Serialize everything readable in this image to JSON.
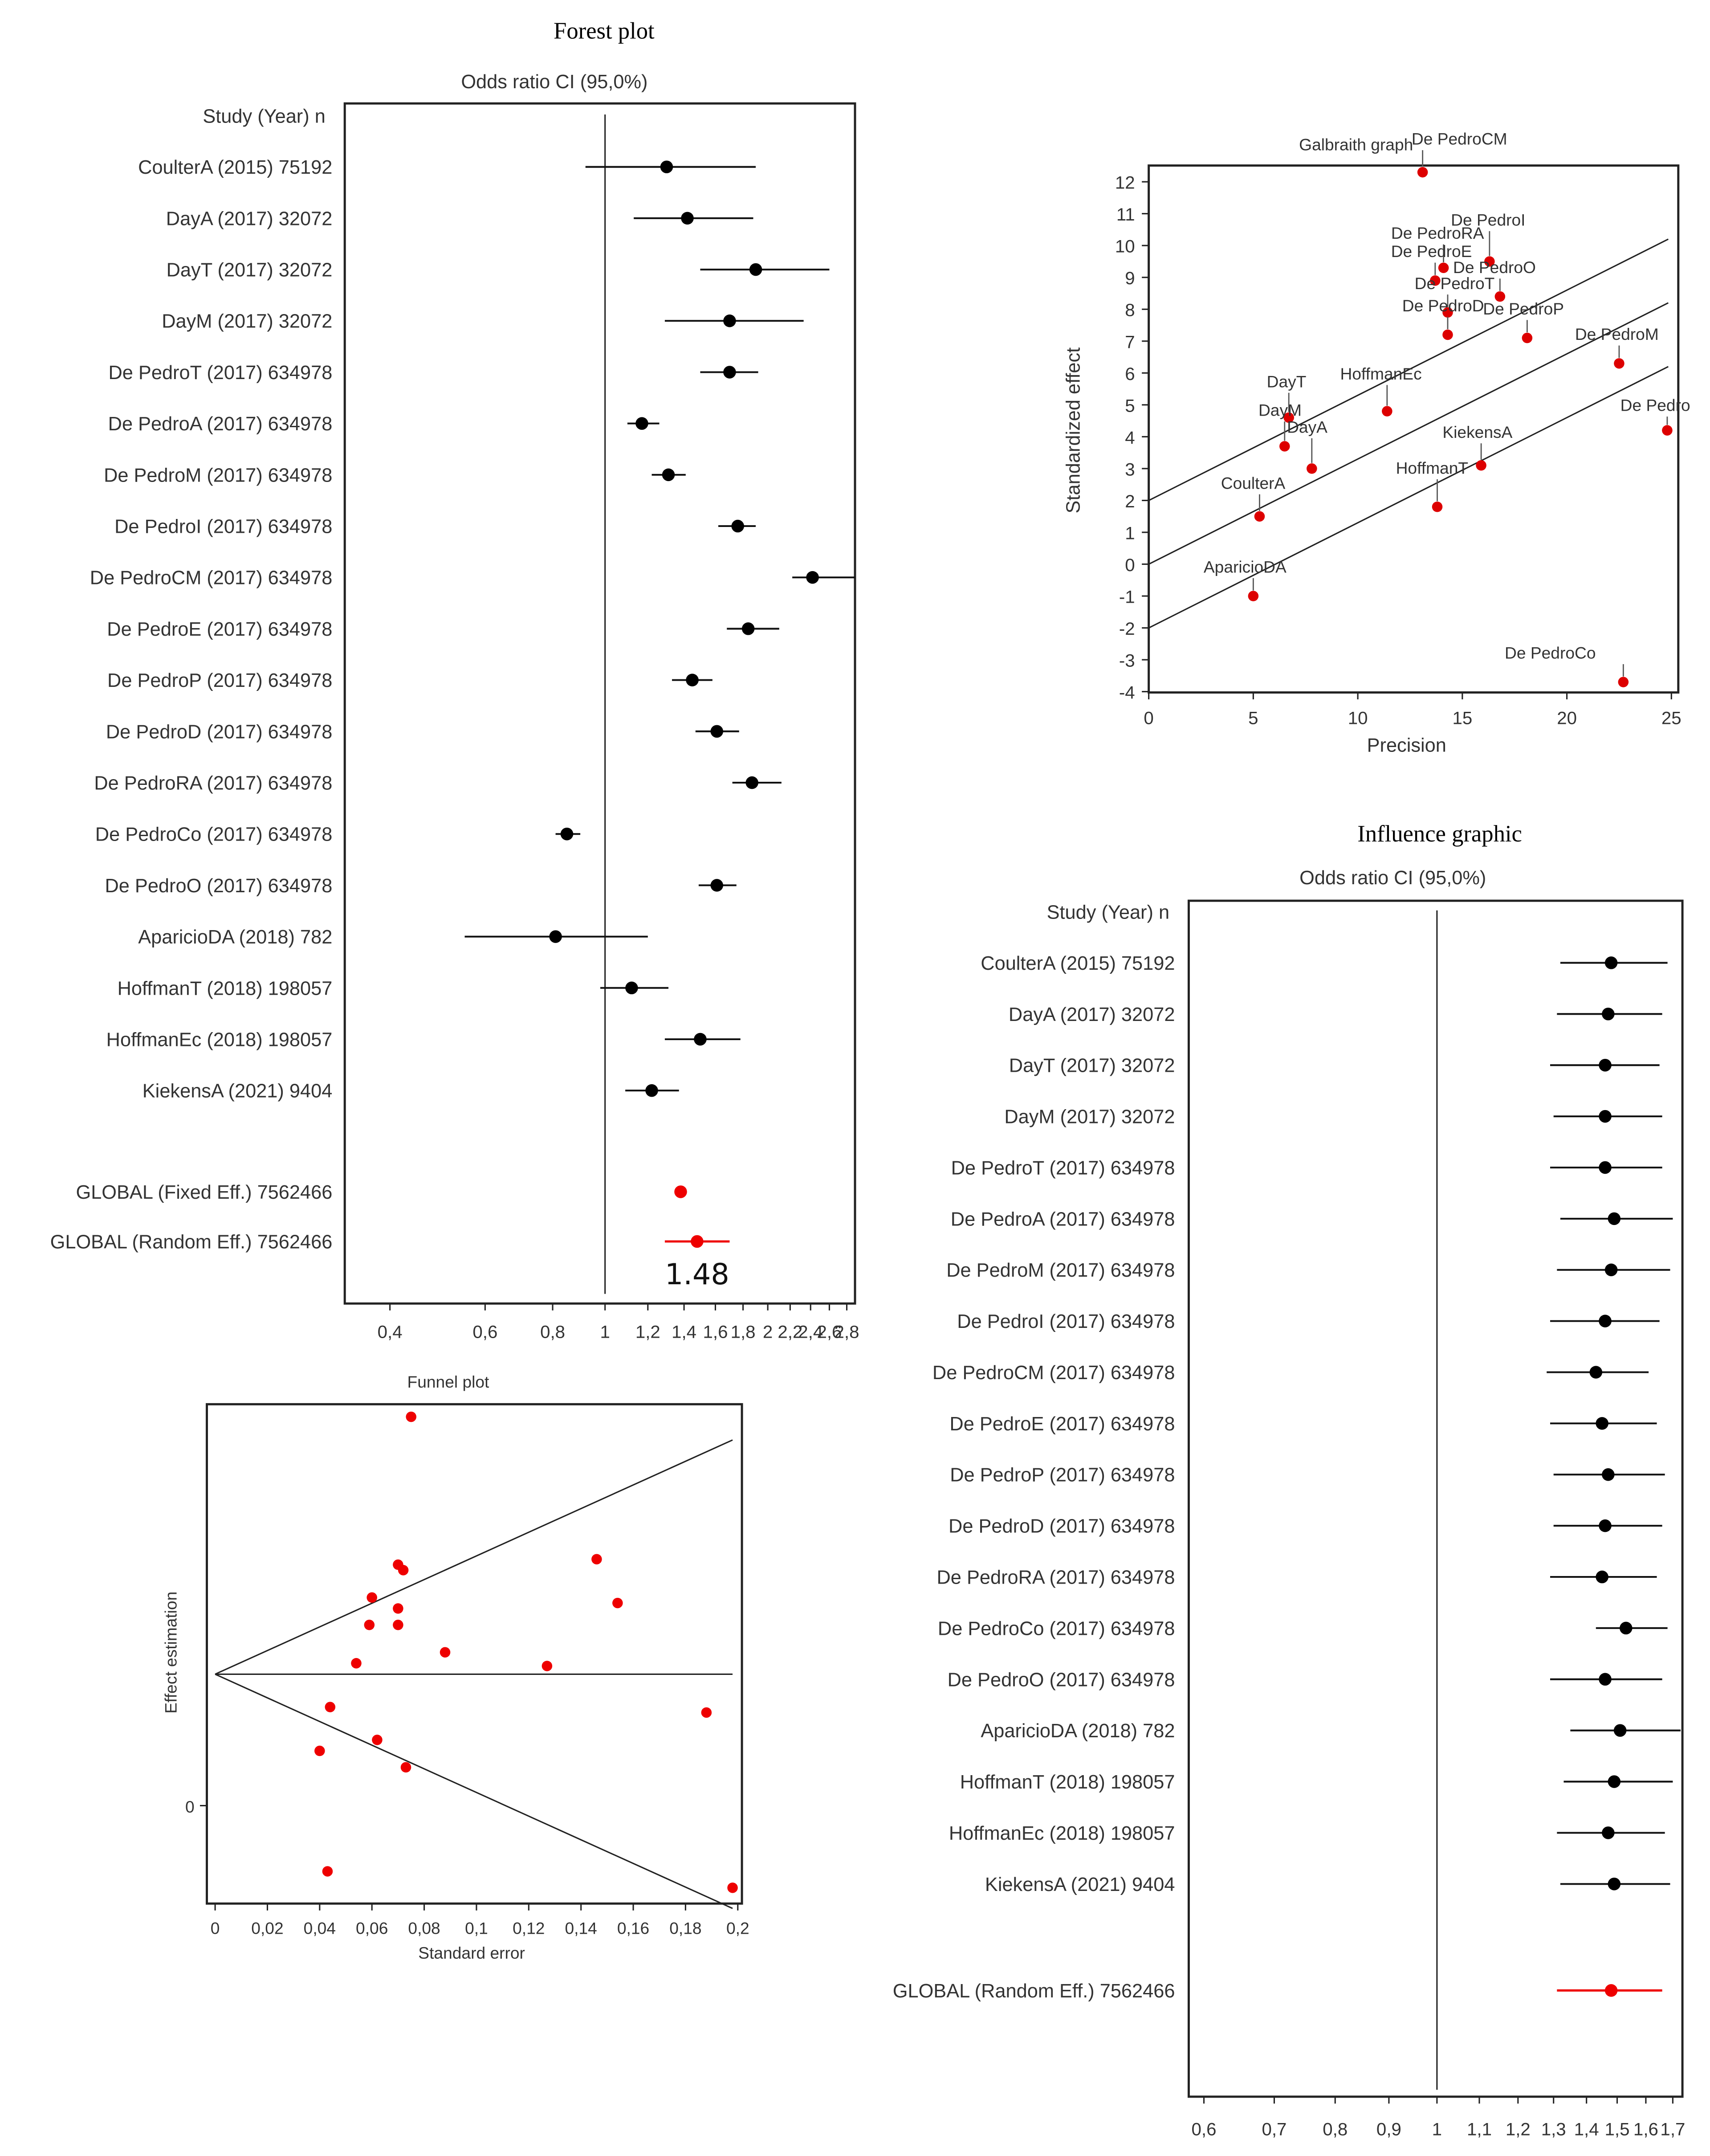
{
  "chart_data": [
    {
      "type": "forest",
      "title": "Forest plot",
      "subtitle": "Odds ratio CI  (95,0%)",
      "header": "Study  (Year)   n",
      "xticks": [
        "0,4",
        "0,6",
        "0,8",
        "1",
        "1,2",
        "1,4",
        "1,6",
        "1,8",
        "2",
        "2,2",
        "2,4",
        "2,6",
        "2,8"
      ],
      "xtick_values": [
        0.4,
        0.6,
        0.8,
        1,
        1.2,
        1.4,
        1.6,
        1.8,
        2,
        2.2,
        2.4,
        2.6,
        2.8
      ],
      "xlim": [
        0.33,
        2.9
      ],
      "reference": 1,
      "studies": [
        {
          "label": "CoulterA (2015)  75192",
          "or": 1.3,
          "lo": 0.92,
          "hi": 1.9
        },
        {
          "label": "DayA (2017)  32072",
          "or": 1.42,
          "lo": 1.13,
          "hi": 1.88
        },
        {
          "label": "DayT (2017)  32072",
          "or": 1.9,
          "lo": 1.5,
          "hi": 2.6
        },
        {
          "label": "DayM (2017)  32072",
          "or": 1.7,
          "lo": 1.29,
          "hi": 2.33
        },
        {
          "label": "De PedroT (2017) 634978",
          "or": 1.7,
          "lo": 1.5,
          "hi": 1.92
        },
        {
          "label": "De PedroA (2017) 634978",
          "or": 1.17,
          "lo": 1.1,
          "hi": 1.26
        },
        {
          "label": "De PedroM (2017) 634978",
          "or": 1.31,
          "lo": 1.22,
          "hi": 1.41
        },
        {
          "label": "De PedroI (2017) 634978",
          "or": 1.76,
          "lo": 1.62,
          "hi": 1.9
        },
        {
          "label": "De PedroCM (2017) 634978",
          "or": 2.42,
          "lo": 2.22,
          "hi": 2.9
        },
        {
          "label": "De PedroE (2017) 634978",
          "or": 1.84,
          "lo": 1.68,
          "hi": 2.1
        },
        {
          "label": "De PedroP (2017) 634978",
          "or": 1.45,
          "lo": 1.33,
          "hi": 1.58
        },
        {
          "label": "De PedroD (2017) 634978",
          "or": 1.61,
          "lo": 1.47,
          "hi": 1.77
        },
        {
          "label": "De PedroRA (2017) 634978",
          "or": 1.87,
          "lo": 1.72,
          "hi": 2.12
        },
        {
          "label": "De PedroCo (2017) 634978",
          "or": 0.85,
          "lo": 0.81,
          "hi": 0.9
        },
        {
          "label": "De PedroO (2017) 634978",
          "or": 1.61,
          "lo": 1.49,
          "hi": 1.75
        },
        {
          "label": "AparicioDA (2018)    782",
          "or": 0.81,
          "lo": 0.55,
          "hi": 1.2
        },
        {
          "label": "HoffmanT (2018) 198057",
          "or": 1.12,
          "lo": 0.98,
          "hi": 1.31
        },
        {
          "label": "HoffmanEc (2018) 198057",
          "or": 1.5,
          "lo": 1.29,
          "hi": 1.78
        },
        {
          "label": "KiekensA (2021)  9404",
          "or": 1.22,
          "lo": 1.09,
          "hi": 1.37
        }
      ],
      "global": [
        {
          "label": "GLOBAL (Fixed Eff.) 7562466",
          "or": 1.38,
          "lo": 1.36,
          "hi": 1.4
        },
        {
          "label": "GLOBAL (Random Eff.) 7562466",
          "or": 1.48,
          "lo": 1.29,
          "hi": 1.7
        }
      ],
      "annotation": "1.48"
    },
    {
      "type": "scatter",
      "title": "Galbraith graph",
      "xlabel": "Precision",
      "ylabel": "Standardized effect",
      "xlim": [
        0,
        25
      ],
      "ylim": [
        -4,
        12.5
      ],
      "xticks": [
        0,
        5,
        10,
        15,
        20,
        25
      ],
      "yticks": [
        -4,
        -3,
        -2,
        -1,
        0,
        1,
        2,
        3,
        4,
        5,
        6,
        7,
        8,
        9,
        10,
        11,
        12
      ],
      "regression_lines": [
        {
          "intercept": 2,
          "slope": 0.33
        },
        {
          "intercept": 0,
          "slope": 0.33
        },
        {
          "intercept": -2,
          "slope": 0.33
        }
      ],
      "points": [
        {
          "label": "De PedroCM",
          "x": 13.1,
          "y": 12.3
        },
        {
          "label": "De PedroI",
          "x": 16.3,
          "y": 9.5
        },
        {
          "label": "De PedroRA",
          "x": 14.1,
          "y": 9.3
        },
        {
          "label": "De PedroE",
          "x": 13.7,
          "y": 8.9
        },
        {
          "label": "De PedroO",
          "x": 16.8,
          "y": 8.4
        },
        {
          "label": "De PedroT",
          "x": 14.3,
          "y": 7.9
        },
        {
          "label": "De PedroD",
          "x": 14.3,
          "y": 7.2
        },
        {
          "label": "De PedroP",
          "x": 18.1,
          "y": 7.1
        },
        {
          "label": "De PedroM",
          "x": 22.5,
          "y": 6.3
        },
        {
          "label": "DayT",
          "x": 6.7,
          "y": 4.6
        },
        {
          "label": "HoffmanEc",
          "x": 11.4,
          "y": 4.8
        },
        {
          "label": "DayM",
          "x": 6.5,
          "y": 3.7
        },
        {
          "label": "DayA",
          "x": 7.8,
          "y": 3
        },
        {
          "label": "De Pedro",
          "x": 24.8,
          "y": 4.2
        },
        {
          "label": "KiekensA",
          "x": 15.9,
          "y": 3.1
        },
        {
          "label": "HoffmanT",
          "x": 13.8,
          "y": 1.8
        },
        {
          "label": "CoulterA",
          "x": 5.3,
          "y": 1.5
        },
        {
          "label": "AparicioDA",
          "x": 5,
          "y": -1
        },
        {
          "label": "De PedroCo",
          "x": 22.7,
          "y": -3.7
        }
      ]
    },
    {
      "type": "scatter",
      "title": "Funnel plot",
      "xlabel": "Standard error",
      "ylabel": "Effect estimation",
      "xlim": [
        -0.003,
        0.2
      ],
      "ylim": [
        -0.13,
        0.73
      ],
      "xticks": [
        "0",
        "0,02",
        "0,04",
        "0,06",
        "0,08",
        "0,1",
        "0,12",
        "0,14",
        "0,16",
        "0,18",
        "0,2"
      ],
      "xtick_values": [
        0,
        0.02,
        0.04,
        0.06,
        0.08,
        0.1,
        0.12,
        0.14,
        0.16,
        0.18,
        0.2
      ],
      "yticks": [
        "0"
      ],
      "ytick_values": [
        0
      ],
      "center": 0.24,
      "funnel_slope": 2.16,
      "points": [
        {
          "x": 0.075,
          "y": 0.71
        },
        {
          "x": 0.07,
          "y": 0.44
        },
        {
          "x": 0.072,
          "y": 0.43
        },
        {
          "x": 0.06,
          "y": 0.38
        },
        {
          "x": 0.07,
          "y": 0.36
        },
        {
          "x": 0.059,
          "y": 0.33
        },
        {
          "x": 0.07,
          "y": 0.33
        },
        {
          "x": 0.054,
          "y": 0.26
        },
        {
          "x": 0.088,
          "y": 0.28
        },
        {
          "x": 0.127,
          "y": 0.255
        },
        {
          "x": 0.146,
          "y": 0.45
        },
        {
          "x": 0.154,
          "y": 0.37
        },
        {
          "x": 0.044,
          "y": 0.18
        },
        {
          "x": 0.062,
          "y": 0.12
        },
        {
          "x": 0.04,
          "y": 0.1
        },
        {
          "x": 0.073,
          "y": 0.07
        },
        {
          "x": 0.188,
          "y": 0.17
        },
        {
          "x": 0.043,
          "y": -0.12
        },
        {
          "x": 0.198,
          "y": -0.15
        }
      ]
    },
    {
      "type": "forest",
      "title": "Influence graphic",
      "subtitle": "Odds ratio CI  (95,0%)",
      "header": "Study  (Year)   n",
      "xticks": [
        "0,6",
        "0,7",
        "0,8",
        "0,9",
        "1",
        "1,1",
        "1,2",
        "1,3",
        "1,4",
        "1,5",
        "1,6",
        "1,7"
      ],
      "xtick_values": [
        0.6,
        0.7,
        0.8,
        0.9,
        1,
        1.1,
        1.2,
        1.3,
        1.4,
        1.5,
        1.6,
        1.7
      ],
      "xlim": [
        0.56,
        1.73
      ],
      "reference": 1,
      "studies": [
        {
          "label": "CoulterA (2015)  75192",
          "or": 1.48,
          "lo": 1.32,
          "hi": 1.68
        },
        {
          "label": "DayA (2017)  32072",
          "or": 1.47,
          "lo": 1.31,
          "hi": 1.66
        },
        {
          "label": "DayT (2017)  32072",
          "or": 1.46,
          "lo": 1.29,
          "hi": 1.65
        },
        {
          "label": "DayM (2017)  32072",
          "or": 1.46,
          "lo": 1.3,
          "hi": 1.66
        },
        {
          "label": "De PedroT (2017) 634978",
          "or": 1.46,
          "lo": 1.29,
          "hi": 1.66
        },
        {
          "label": "De PedroA (2017) 634978",
          "or": 1.49,
          "lo": 1.32,
          "hi": 1.7
        },
        {
          "label": "De PedroM (2017) 634978",
          "or": 1.48,
          "lo": 1.31,
          "hi": 1.69
        },
        {
          "label": "De PedroI (2017) 634978",
          "or": 1.46,
          "lo": 1.29,
          "hi": 1.65
        },
        {
          "label": "De PedroCM (2017) 634978",
          "or": 1.43,
          "lo": 1.28,
          "hi": 1.61
        },
        {
          "label": "De PedroE (2017) 634978",
          "or": 1.45,
          "lo": 1.29,
          "hi": 1.64
        },
        {
          "label": "De PedroP (2017) 634978",
          "or": 1.47,
          "lo": 1.3,
          "hi": 1.67
        },
        {
          "label": "De PedroD (2017) 634978",
          "or": 1.46,
          "lo": 1.3,
          "hi": 1.66
        },
        {
          "label": "De PedroRA (2017) 634978",
          "or": 1.45,
          "lo": 1.29,
          "hi": 1.64
        },
        {
          "label": "De PedroCo (2017) 634978",
          "or": 1.53,
          "lo": 1.43,
          "hi": 1.68
        },
        {
          "label": "De PedroO (2017) 634978",
          "or": 1.46,
          "lo": 1.29,
          "hi": 1.66
        },
        {
          "label": "AparicioDA (2018)    782",
          "or": 1.51,
          "lo": 1.35,
          "hi": 1.73
        },
        {
          "label": "HoffmanT (2018) 198057",
          "or": 1.49,
          "lo": 1.33,
          "hi": 1.7
        },
        {
          "label": "HoffmanEc (2018) 198057",
          "or": 1.47,
          "lo": 1.31,
          "hi": 1.67
        },
        {
          "label": "KiekensA (2021)  9404",
          "or": 1.49,
          "lo": 1.32,
          "hi": 1.69
        }
      ],
      "global": [
        {
          "label": "GLOBAL (Random Eff.) 7562466",
          "or": 1.48,
          "lo": 1.31,
          "hi": 1.66
        }
      ]
    }
  ]
}
